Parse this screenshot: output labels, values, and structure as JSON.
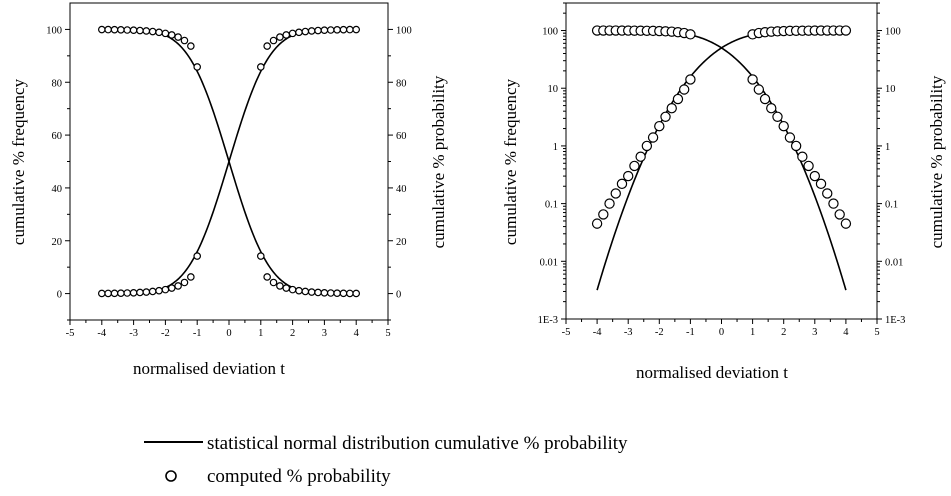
{
  "chart_data": [
    {
      "type": "line",
      "title": "",
      "xlabel": "normalised deviation  t",
      "ylabel_left": "cumulative  %  frequency",
      "ylabel_right": "cumulative  %  probability",
      "xlim": [
        -5,
        5
      ],
      "ylim": [
        -10,
        110
      ],
      "x_ticks": [
        "-5",
        "-4",
        "-3",
        "-2",
        "-1",
        "0",
        "1",
        "2",
        "3",
        "4",
        "5"
      ],
      "y_ticks": [
        "0",
        "20",
        "40",
        "60",
        "80",
        "100"
      ],
      "y_scale": "linear",
      "grid": false,
      "series": [
        {
          "kind": "line",
          "curve": "normal-cdf-ascending",
          "x_range": [
            -4,
            4
          ]
        },
        {
          "kind": "line",
          "curve": "normal-cdf-descending",
          "x_range": [
            -4,
            4
          ]
        },
        {
          "kind": "markers",
          "x": [
            -4,
            -3.8,
            -3.6,
            -3.4,
            -3.2,
            -3,
            -2.8,
            -2.6,
            -2.4,
            -2.2,
            -2,
            -1.8,
            -1.6,
            -1.4,
            -1.2,
            -1,
            1,
            1.2,
            1.4,
            1.6,
            1.8,
            2,
            2.2,
            2.4,
            2.6,
            2.8,
            3,
            3.2,
            3.4,
            3.6,
            3.8,
            4
          ],
          "y": [
            0.05,
            0.07,
            0.1,
            0.15,
            0.22,
            0.3,
            0.42,
            0.58,
            0.8,
            1.1,
            1.5,
            2.1,
            2.9,
            4.2,
            6.3,
            14.2,
            85.8,
            93.7,
            95.8,
            97.1,
            97.9,
            98.5,
            98.9,
            99.2,
            99.42,
            99.58,
            99.7,
            99.78,
            99.85,
            99.9,
            99.93,
            99.95
          ]
        },
        {
          "kind": "markers",
          "x": [
            -4,
            -3.8,
            -3.6,
            -3.4,
            -3.2,
            -3,
            -2.8,
            -2.6,
            -2.4,
            -2.2,
            -2,
            -1.8,
            -1.6,
            -1.4,
            -1.2,
            -1,
            1,
            1.2,
            1.4,
            1.6,
            1.8,
            2,
            2.2,
            2.4,
            2.6,
            2.8,
            3,
            3.2,
            3.4,
            3.6,
            3.8,
            4
          ],
          "y": [
            99.95,
            99.93,
            99.9,
            99.85,
            99.78,
            99.7,
            99.58,
            99.42,
            99.2,
            98.9,
            98.5,
            97.9,
            97.1,
            95.8,
            93.7,
            85.8,
            14.2,
            6.3,
            4.2,
            2.9,
            2.1,
            1.5,
            1.1,
            0.8,
            0.58,
            0.42,
            0.3,
            0.22,
            0.15,
            0.1,
            0.07,
            0.05
          ]
        }
      ]
    },
    {
      "type": "line",
      "title": "",
      "xlabel": "normalised deviation  t",
      "ylabel_left": "cumulative  %  frequency",
      "ylabel_right": "cumulative  %  probability",
      "xlim": [
        -5,
        5
      ],
      "ylim": [
        0.001,
        300
      ],
      "x_ticks": [
        "-5",
        "-4",
        "-3",
        "-2",
        "-1",
        "0",
        "1",
        "2",
        "3",
        "4",
        "5"
      ],
      "y_ticks": [
        "1E-3",
        "0.01",
        "0.1",
        "1",
        "10",
        "100"
      ],
      "y_scale": "log",
      "grid": false,
      "series": [
        {
          "kind": "line",
          "curve": "normal-cdf-ascending",
          "x_range": [
            -4,
            4
          ]
        },
        {
          "kind": "line",
          "curve": "normal-cdf-descending",
          "x_range": [
            -4,
            4
          ]
        },
        {
          "kind": "markers",
          "x": [
            -4,
            -3.8,
            -3.6,
            -3.4,
            -3.2,
            -3,
            -2.8,
            -2.6,
            -2.4,
            -2.2,
            -2,
            -1.8,
            -1.6,
            -1.4,
            -1.2,
            -1,
            1,
            1.2,
            1.4,
            1.6,
            1.8,
            2,
            2.2,
            2.4,
            2.6,
            2.8,
            3,
            3.2,
            3.4,
            3.6,
            3.8,
            4
          ],
          "y": [
            0.045,
            0.065,
            0.1,
            0.15,
            0.22,
            0.3,
            0.45,
            0.65,
            1.0,
            1.4,
            2.2,
            3.2,
            4.5,
            6.5,
            9.5,
            14.2,
            85.8,
            90.5,
            93.5,
            95.5,
            96.8,
            97.8,
            98.6,
            99.0,
            99.35,
            99.55,
            99.7,
            99.78,
            99.85,
            99.9,
            99.93,
            99.95
          ]
        },
        {
          "kind": "markers",
          "x": [
            -4,
            -3.8,
            -3.6,
            -3.4,
            -3.2,
            -3,
            -2.8,
            -2.6,
            -2.4,
            -2.2,
            -2,
            -1.8,
            -1.6,
            -1.4,
            -1.2,
            -1,
            1,
            1.2,
            1.4,
            1.6,
            1.8,
            2,
            2.2,
            2.4,
            2.6,
            2.8,
            3,
            3.2,
            3.4,
            3.6,
            3.8,
            4
          ],
          "y": [
            99.95,
            99.93,
            99.9,
            99.85,
            99.78,
            99.7,
            99.55,
            99.35,
            99.0,
            98.6,
            97.8,
            96.8,
            95.5,
            93.5,
            90.5,
            85.8,
            14.2,
            9.5,
            6.5,
            4.5,
            3.2,
            2.2,
            1.4,
            1.0,
            0.65,
            0.45,
            0.3,
            0.22,
            0.15,
            0.1,
            0.065,
            0.045
          ]
        }
      ]
    }
  ],
  "legend": {
    "line_label": "statistical normal distribution  cumulative %  probability",
    "marker_label": "computed %  probability"
  }
}
